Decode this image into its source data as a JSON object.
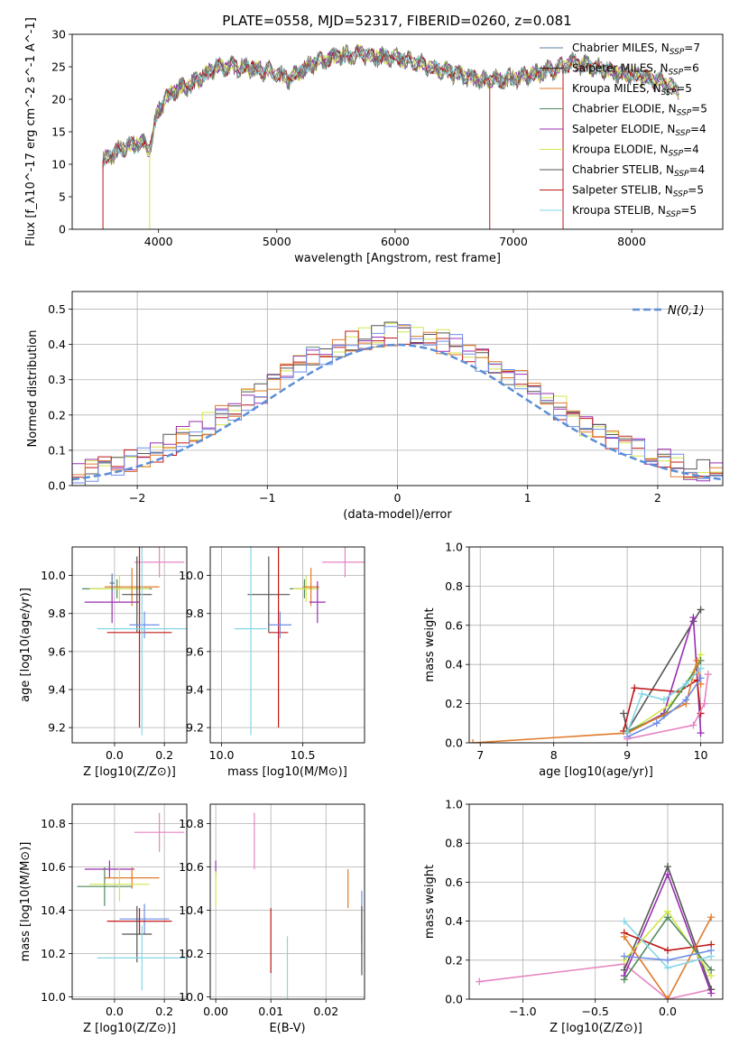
{
  "colors": {
    "chabrier_miles": "#5a7fa0",
    "salpeter_miles": "#2a2a2a",
    "kroupa_miles": "#e07a2a",
    "chabrier_elodie": "#4f8a5a",
    "salpeter_elodie": "#9a2fb2",
    "kroupa_elodie": "#d4e54a",
    "chabrier_stelib": "#555555",
    "salpeter_stelib": "#c01818",
    "kroupa_stelib": "#86d6e6",
    "gauss": "#5b8fd6",
    "pink": "#e684c2",
    "blue": "#6e8ee8",
    "grid": "#b0b0b0"
  },
  "chart_data": [
    {
      "id": "spectrum",
      "type": "line",
      "title": "PLATE=0558, MJD=52317, FIBERID=0260, z=0.081",
      "xlabel": "wavelength [Angstrom, rest frame]",
      "ylabel": "Flux [f_λ10^-17 erg cm^-2 s^-1 A^-1]",
      "xlim": [
        3270,
        8770
      ],
      "ylim": [
        0,
        30
      ],
      "xticks": [
        4000,
        5000,
        6000,
        7000,
        8000
      ],
      "yticks": [
        0,
        5,
        10,
        15,
        20,
        25,
        30
      ],
      "grid": false,
      "legend_placement": "top-right",
      "continuum": [
        [
          3530,
          10.5
        ],
        [
          3700,
          12.5
        ],
        [
          3860,
          13.5
        ],
        [
          3920,
          12.0
        ],
        [
          3990,
          18
        ],
        [
          4100,
          21
        ],
        [
          4300,
          22.5
        ],
        [
          4500,
          25
        ],
        [
          4700,
          25
        ],
        [
          4900,
          24.5
        ],
        [
          5100,
          23
        ],
        [
          5300,
          25.5
        ],
        [
          5500,
          26.5
        ],
        [
          5700,
          27
        ],
        [
          5900,
          26.5
        ],
        [
          6100,
          26
        ],
        [
          6300,
          25
        ],
        [
          6500,
          24
        ],
        [
          6700,
          23
        ],
        [
          6900,
          23
        ],
        [
          7100,
          23.5
        ],
        [
          7300,
          24.5
        ],
        [
          7500,
          25.5
        ],
        [
          7700,
          25
        ],
        [
          7900,
          24
        ],
        [
          8100,
          23.5
        ],
        [
          8300,
          22.5
        ],
        [
          8400,
          21
        ]
      ],
      "series": [
        {
          "name": "Chabrier MILES, N_SSP=7",
          "ssp": "7"
        },
        {
          "name": "Salpeter MILES, N_SSP=6",
          "ssp": "6"
        },
        {
          "name": "Kroupa MILES, N_SSP=5",
          "ssp": "5"
        },
        {
          "name": "Chabrier ELODIE, N_SSP=5",
          "ssp": "5"
        },
        {
          "name": "Salpeter ELODIE, N_SSP=4",
          "ssp": "4"
        },
        {
          "name": "Kroupa ELODIE, N_SSP=4",
          "ssp": "4"
        },
        {
          "name": "Chabrier STELIB, N_SSP=4",
          "ssp": "4"
        },
        {
          "name": "Salpeter STELIB, N_SSP=5",
          "ssp": "5"
        },
        {
          "name": "Kroupa STELIB, N_SSP=5",
          "ssp": "5"
        }
      ]
    },
    {
      "id": "residuals",
      "type": "line",
      "xlabel": "(data-model)/error",
      "ylabel": "Normed distribution",
      "xlim": [
        -2.5,
        2.5
      ],
      "ylim": [
        0,
        0.55
      ],
      "xticks": [
        -2,
        -1,
        0,
        1,
        2
      ],
      "yticks": [
        0.0,
        0.1,
        0.2,
        0.3,
        0.4,
        0.5
      ],
      "grid": true,
      "legend_placement": "top-right",
      "legend": "N(0,1)",
      "bin_width": 0.1
    },
    {
      "id": "z_age",
      "type": "scatter",
      "xlabel": "Z [log10(Z/Z⊙)]",
      "ylabel": "age [log10(age/yr)]",
      "xlim": [
        -0.17,
        0.29
      ],
      "ylim": [
        9.12,
        10.15
      ],
      "xticks": [
        0.0,
        0.2
      ],
      "yticks": [
        9.2,
        9.4,
        9.6,
        9.8,
        10.0
      ],
      "grid": true,
      "points": [
        {
          "c": "pink",
          "x": 0.18,
          "xe": 0.1,
          "y": 10.07,
          "ye": 0.08
        },
        {
          "c": "chabrier_elodie",
          "x": 0.01,
          "xe": 0.14,
          "y": 9.93,
          "ye": 0.05
        },
        {
          "c": "kroupa_elodie",
          "x": 0.02,
          "xe": 0.12,
          "y": 9.93,
          "ye": 0.07
        },
        {
          "c": "kroupa_miles",
          "x": 0.07,
          "xe": 0.11,
          "y": 9.94,
          "ye": 0.1
        },
        {
          "c": "salpeter_elodie",
          "x": -0.01,
          "xe": 0.11,
          "y": 9.86,
          "ye": 0.11
        },
        {
          "c": "chabrier_stelib",
          "x": 0.09,
          "xe": 0.06,
          "y": 9.9,
          "ye": 0.2
        },
        {
          "c": "salpeter_stelib",
          "x": 0.1,
          "xe": 0.13,
          "y": 9.7,
          "ye": 0.5
        },
        {
          "c": "blue",
          "x": 0.12,
          "xe": 0.06,
          "y": 9.74,
          "ye": 0.07
        },
        {
          "c": "kroupa_stelib",
          "x": 0.11,
          "xe": 0.18,
          "y": 9.72,
          "ye": 0.56
        },
        {
          "c": "chabrier_miles",
          "x": -0.01,
          "xe": 0.01,
          "y": 9.96,
          "ye": 0.05
        }
      ]
    },
    {
      "id": "mass_age",
      "type": "scatter",
      "xlabel": "mass [log10(M/M⊙)]",
      "ylabel": "",
      "xlim": [
        9.93,
        10.88
      ],
      "ylim": [
        9.12,
        10.15
      ],
      "xticks": [
        10.0,
        10.5
      ],
      "yticks": [
        9.2,
        9.4,
        9.6,
        9.8,
        10.0
      ],
      "grid": true,
      "points": [
        {
          "c": "pink",
          "x": 10.76,
          "xe": 0.14,
          "y": 10.07,
          "ye": 0.08
        },
        {
          "c": "chabrier_elodie",
          "x": 10.51,
          "xe": 0.09,
          "y": 9.93,
          "ye": 0.05
        },
        {
          "c": "kroupa_elodie",
          "x": 10.52,
          "xe": 0.08,
          "y": 9.93,
          "ye": 0.07
        },
        {
          "c": "kroupa_miles",
          "x": 10.55,
          "xe": 0.05,
          "y": 9.94,
          "ye": 0.1
        },
        {
          "c": "salpeter_elodie",
          "x": 10.59,
          "xe": 0.05,
          "y": 9.86,
          "ye": 0.11
        },
        {
          "c": "chabrier_stelib",
          "x": 10.29,
          "xe": 0.13,
          "y": 9.9,
          "ye": 0.2
        },
        {
          "c": "salpeter_stelib",
          "x": 10.35,
          "xe": 0.06,
          "y": 9.7,
          "ye": 0.5
        },
        {
          "c": "blue",
          "x": 10.36,
          "xe": 0.07,
          "y": 9.74,
          "ye": 0.07
        },
        {
          "c": "kroupa_stelib",
          "x": 10.18,
          "xe": 0.1,
          "y": 9.72,
          "ye": 0.56
        }
      ]
    },
    {
      "id": "age_weight",
      "type": "line",
      "xlabel": "age [log10(age/yr)]",
      "ylabel": "mass weight",
      "xlim": [
        6.85,
        10.3
      ],
      "ylim": [
        0,
        1
      ],
      "xticks": [
        7,
        8,
        9,
        10
      ],
      "yticks": [
        0.0,
        0.2,
        0.4,
        0.6,
        0.8,
        1.0
      ],
      "grid": true,
      "series": [
        {
          "c": "chabrier_stelib",
          "pts": [
            [
              8.95,
              0.15
            ],
            [
              9.0,
              0.06
            ],
            [
              9.9,
              0.62
            ],
            [
              10.0,
              0.68
            ]
          ]
        },
        {
          "c": "salpeter_elodie",
          "pts": [
            [
              9.0,
              0.05
            ],
            [
              9.5,
              0.15
            ],
            [
              9.9,
              0.64
            ],
            [
              10.0,
              0.05
            ]
          ]
        },
        {
          "c": "salpeter_stelib",
          "pts": [
            [
              8.95,
              0.06
            ],
            [
              9.1,
              0.28
            ],
            [
              9.7,
              0.26
            ],
            [
              9.95,
              0.32
            ],
            [
              10.0,
              0.15
            ]
          ]
        },
        {
          "c": "kroupa_elodie",
          "pts": [
            [
              9.0,
              0.05
            ],
            [
              9.6,
              0.2
            ],
            [
              9.9,
              0.36
            ],
            [
              10.0,
              0.45
            ]
          ]
        },
        {
          "c": "chabrier_elodie",
          "pts": [
            [
              9.0,
              0.06
            ],
            [
              9.5,
              0.14
            ],
            [
              9.8,
              0.3
            ],
            [
              10.0,
              0.42
            ]
          ]
        },
        {
          "c": "kroupa_miles",
          "pts": [
            [
              6.9,
              0.0
            ],
            [
              9.0,
              0.05
            ],
            [
              9.8,
              0.2
            ],
            [
              9.95,
              0.42
            ],
            [
              10.0,
              0.3
            ]
          ]
        },
        {
          "c": "kroupa_stelib",
          "pts": [
            [
              9.0,
              0.05
            ],
            [
              9.2,
              0.25
            ],
            [
              9.5,
              0.22
            ],
            [
              9.8,
              0.3
            ],
            [
              10.0,
              0.38
            ]
          ]
        },
        {
          "c": "blue",
          "pts": [
            [
              9.0,
              0.03
            ],
            [
              9.4,
              0.1
            ],
            [
              9.8,
              0.22
            ],
            [
              10.0,
              0.33
            ]
          ]
        },
        {
          "c": "pink",
          "pts": [
            [
              9.0,
              0.02
            ],
            [
              9.9,
              0.09
            ],
            [
              10.05,
              0.2
            ],
            [
              10.1,
              0.35
            ]
          ]
        }
      ]
    },
    {
      "id": "z_mass",
      "type": "scatter",
      "xlabel": "Z [log10(Z/Z⊙)]",
      "ylabel": "mass [log10(M/M⊙)]",
      "xlim": [
        -0.17,
        0.29
      ],
      "ylim": [
        9.99,
        10.89
      ],
      "xticks": [
        0.0,
        0.2
      ],
      "yticks": [
        10.0,
        10.2,
        10.4,
        10.6,
        10.8
      ],
      "grid": true,
      "points": [
        {
          "c": "pink",
          "x": 0.18,
          "xe": 0.1,
          "y": 10.76,
          "ye": 0.09
        },
        {
          "c": "salpeter_elodie",
          "x": -0.02,
          "xe": 0.1,
          "y": 10.59,
          "ye": 0.04
        },
        {
          "c": "kroupa_miles",
          "x": 0.07,
          "xe": 0.11,
          "y": 10.55,
          "ye": 0.05
        },
        {
          "c": "chabrier_elodie",
          "x": -0.04,
          "xe": 0.11,
          "y": 10.51,
          "ye": 0.09
        },
        {
          "c": "kroupa_elodie",
          "x": 0.02,
          "xe": 0.12,
          "y": 10.52,
          "ye": 0.08
        },
        {
          "c": "blue",
          "x": 0.12,
          "xe": 0.1,
          "y": 10.36,
          "ye": 0.07
        },
        {
          "c": "salpeter_stelib",
          "x": 0.1,
          "xe": 0.13,
          "y": 10.35,
          "ye": 0.06
        },
        {
          "c": "chabrier_stelib",
          "x": 0.09,
          "xe": 0.06,
          "y": 10.29,
          "ye": 0.13
        },
        {
          "c": "kroupa_stelib",
          "x": 0.11,
          "xe": 0.18,
          "y": 10.18,
          "ye": 0.15
        }
      ]
    },
    {
      "id": "ebv_mass",
      "type": "scatter",
      "xlabel": "E(B-V)",
      "ylabel": "",
      "xlim": [
        -0.001,
        0.027
      ],
      "ylim": [
        9.99,
        10.89
      ],
      "xticks": [
        0.0,
        0.01,
        0.02
      ],
      "yticks": [
        10.0,
        10.2,
        10.4,
        10.6,
        10.8
      ],
      "grid": true,
      "points": [
        {
          "c": "pink",
          "x": 0.007,
          "y": 10.72,
          "ye": 0.13
        },
        {
          "c": "salpeter_elodie",
          "x": 0.0,
          "y": 10.59,
          "ye": 0.04
        },
        {
          "c": "kroupa_elodie",
          "x": 0.0,
          "y": 10.5,
          "ye": 0.08
        },
        {
          "c": "kroupa_miles",
          "x": 0.024,
          "y": 10.5,
          "ye": 0.09
        },
        {
          "c": "blue",
          "x": 0.0265,
          "y": 10.37,
          "ye": 0.12
        },
        {
          "c": "salpeter_stelib",
          "x": 0.01,
          "y": 10.26,
          "ye": 0.15
        },
        {
          "c": "chabrier_stelib",
          "x": 0.0265,
          "y": 10.26,
          "ye": 0.16
        },
        {
          "c": "kroupa_stelib",
          "x": 0.013,
          "y": 10.13,
          "ye": 0.15
        }
      ]
    },
    {
      "id": "z_weight",
      "type": "line",
      "xlabel": "Z [log10(Z/Z⊙)]",
      "ylabel": "mass weight",
      "xlim": [
        -1.37,
        0.38
      ],
      "ylim": [
        0,
        1
      ],
      "xticks": [
        -1.0,
        -0.5,
        0.0
      ],
      "yticks": [
        0.0,
        0.2,
        0.4,
        0.6,
        0.8,
        1.0
      ],
      "grid": true,
      "series": [
        {
          "c": "pink",
          "pts": [
            [
              -1.3,
              0.09
            ],
            [
              -0.3,
              0.18
            ],
            [
              0.0,
              0.0
            ],
            [
              0.3,
              0.05
            ]
          ]
        },
        {
          "c": "chabrier_stelib",
          "pts": [
            [
              -0.3,
              0.15
            ],
            [
              0.0,
              0.68
            ],
            [
              0.3,
              0.05
            ]
          ]
        },
        {
          "c": "salpeter_elodie",
          "pts": [
            [
              -0.3,
              0.12
            ],
            [
              0.0,
              0.64
            ],
            [
              0.3,
              0.03
            ]
          ]
        },
        {
          "c": "salpeter_stelib",
          "pts": [
            [
              -0.3,
              0.34
            ],
            [
              0.0,
              0.25
            ],
            [
              0.3,
              0.28
            ]
          ]
        },
        {
          "c": "kroupa_elodie",
          "pts": [
            [
              -0.3,
              0.2
            ],
            [
              0.0,
              0.45
            ],
            [
              0.3,
              0.12
            ]
          ]
        },
        {
          "c": "chabrier_elodie",
          "pts": [
            [
              -0.3,
              0.1
            ],
            [
              0.0,
              0.42
            ],
            [
              0.3,
              0.15
            ]
          ]
        },
        {
          "c": "kroupa_miles",
          "pts": [
            [
              -0.3,
              0.32
            ],
            [
              0.0,
              0.0
            ],
            [
              0.3,
              0.42
            ]
          ]
        },
        {
          "c": "kroupa_stelib",
          "pts": [
            [
              -0.3,
              0.4
            ],
            [
              0.0,
              0.16
            ],
            [
              0.3,
              0.22
            ]
          ]
        },
        {
          "c": "blue",
          "pts": [
            [
              -0.3,
              0.22
            ],
            [
              0.0,
              0.2
            ],
            [
              0.3,
              0.25
            ]
          ]
        }
      ]
    }
  ]
}
